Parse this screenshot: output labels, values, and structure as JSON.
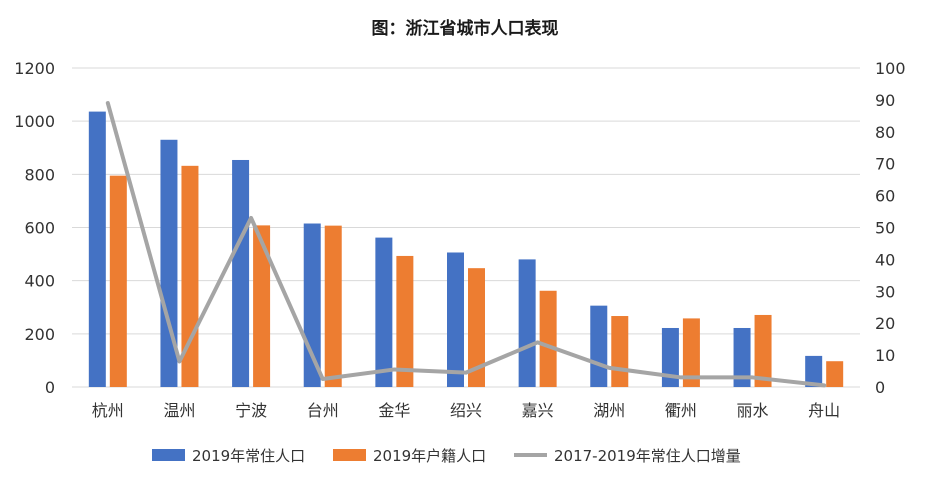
{
  "chart_data": {
    "type": "bar",
    "title": "图：浙江省城市人口表现",
    "categories": [
      "杭州",
      "温州",
      "宁波",
      "台州",
      "金华",
      "绍兴",
      "嘉兴",
      "湖州",
      "衢州",
      "丽水",
      "舟山"
    ],
    "series": [
      {
        "name": "2019年常住人口",
        "type": "bar",
        "axis": "left",
        "color": "#4472C4",
        "values": [
          1036,
          930,
          854,
          615,
          562,
          506,
          480,
          306,
          222,
          222,
          117
        ]
      },
      {
        "name": "2019年户籍人口",
        "type": "bar",
        "axis": "left",
        "color": "#ED7D31",
        "values": [
          795,
          832,
          608,
          607,
          493,
          447,
          362,
          267,
          258,
          271,
          97
        ]
      },
      {
        "name": "2017-2019年常住人口增量",
        "type": "line",
        "axis": "right",
        "color": "#A5A5A5",
        "values": [
          89,
          8,
          53,
          2.5,
          5.5,
          4.5,
          14,
          6,
          3,
          3,
          0.5
        ]
      }
    ],
    "y_left": {
      "min": 0,
      "max": 1200,
      "ticks": [
        0,
        200,
        400,
        600,
        800,
        1000,
        1200
      ]
    },
    "y_right": {
      "min": 0,
      "max": 100,
      "ticks": [
        0,
        10,
        20,
        30,
        40,
        50,
        60,
        70,
        80,
        90,
        100
      ]
    },
    "grid": true,
    "legend": "bottom"
  }
}
